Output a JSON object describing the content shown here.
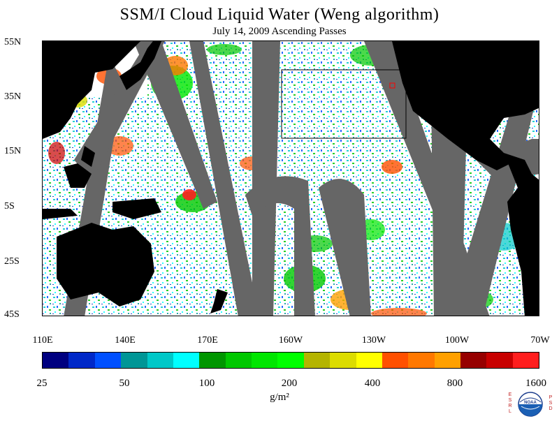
{
  "title": "SSM/I Cloud Liquid Water (Weng algorithm)",
  "subtitle": "July 14, 2009  Ascending Passes",
  "map": {
    "lat_labels": [
      "55N",
      "35N",
      "15N",
      "5S",
      "25S",
      "45S"
    ],
    "lon_labels": [
      "110E",
      "140E",
      "170E",
      "160W",
      "130W",
      "100W",
      "70W"
    ],
    "land_color": "#000000",
    "no_data_color": "#666666",
    "ocean_clear_color": "#ffffff",
    "box_color": "#000000",
    "marker_color": "#ff0000"
  },
  "colorbar": {
    "colors": [
      "#000080",
      "#0028c8",
      "#0050ff",
      "#009696",
      "#00c8c8",
      "#00ffff",
      "#009600",
      "#00c800",
      "#00e600",
      "#00ff00",
      "#b4b400",
      "#dcdc00",
      "#ffff00",
      "#ff5000",
      "#ff7800",
      "#ffa000",
      "#960000",
      "#c80000",
      "#ff1e1e"
    ],
    "tick_labels": [
      "25",
      "50",
      "100",
      "200",
      "400",
      "800",
      "1600"
    ],
    "units": "g/m²"
  },
  "logo": {
    "left_text": "ESRL",
    "right_text": "PSD",
    "center_text": "NOAA"
  }
}
